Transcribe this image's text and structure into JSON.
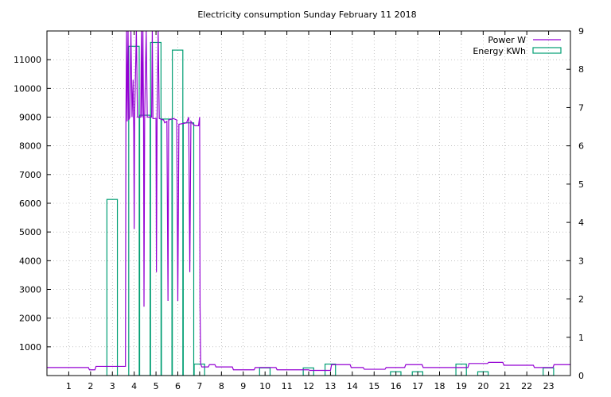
{
  "chart_data": {
    "type": "bar+line",
    "title": "Electricity consumption Sunday February 11 2018",
    "xlabel": "",
    "ylabel_left": "",
    "ylabel_right": "",
    "xlim": [
      0,
      24
    ],
    "ylim_left": [
      0,
      12000
    ],
    "ylim_right": [
      0,
      9
    ],
    "x_ticks": [
      "1",
      "2",
      "3",
      "4",
      "5",
      "6",
      "7",
      "8",
      "9",
      "10",
      "11",
      "12",
      "13",
      "14",
      "15",
      "16",
      "17",
      "18",
      "19",
      "20",
      "21",
      "22",
      "23"
    ],
    "y_ticks_left": [
      "1000",
      "2000",
      "3000",
      "4000",
      "5000",
      "6000",
      "7000",
      "8000",
      "9000",
      "10000",
      "11000"
    ],
    "y_ticks_right": [
      "0",
      "1",
      "2",
      "3",
      "4",
      "5",
      "6",
      "7",
      "8",
      "9"
    ],
    "grid": true,
    "legend_position": "top-right",
    "colors": {
      "power": "#9400d3",
      "energy": "#009e73"
    },
    "series": [
      {
        "name": "Power W",
        "axis": "left",
        "type": "line",
        "points": [
          [
            0,
            280
          ],
          [
            1.9,
            280
          ],
          [
            1.95,
            200
          ],
          [
            2.2,
            200
          ],
          [
            2.25,
            320
          ],
          [
            2.9,
            320
          ],
          [
            3.6,
            320
          ],
          [
            3.62,
            8800
          ],
          [
            3.65,
            12000
          ],
          [
            3.68,
            8850
          ],
          [
            3.72,
            12000
          ],
          [
            3.75,
            8900
          ],
          [
            3.8,
            9000
          ],
          [
            3.85,
            12000
          ],
          [
            3.9,
            9000
          ],
          [
            3.95,
            10300
          ],
          [
            3.98,
            8500
          ],
          [
            4.0,
            5100
          ],
          [
            4.02,
            9000
          ],
          [
            4.1,
            12000
          ],
          [
            4.15,
            9000
          ],
          [
            4.3,
            9000
          ],
          [
            4.33,
            12000
          ],
          [
            4.36,
            9000
          ],
          [
            4.4,
            12000
          ],
          [
            4.43,
            8900
          ],
          [
            4.45,
            2400
          ],
          [
            4.48,
            9000
          ],
          [
            4.55,
            12000
          ],
          [
            4.6,
            9000
          ],
          [
            4.8,
            9000
          ],
          [
            4.83,
            12000
          ],
          [
            4.86,
            8950
          ],
          [
            5.0,
            8950
          ],
          [
            5.02,
            3600
          ],
          [
            5.05,
            9000
          ],
          [
            5.1,
            12000
          ],
          [
            5.15,
            8950
          ],
          [
            5.35,
            8900
          ],
          [
            5.4,
            8800
          ],
          [
            5.5,
            8850
          ],
          [
            5.55,
            2600
          ],
          [
            5.58,
            8900
          ],
          [
            5.8,
            8950
          ],
          [
            5.95,
            8900
          ],
          [
            6.0,
            2600
          ],
          [
            6.05,
            8750
          ],
          [
            6.4,
            8800
          ],
          [
            6.5,
            9000
          ],
          [
            6.55,
            3600
          ],
          [
            6.6,
            8850
          ],
          [
            6.7,
            8750
          ],
          [
            6.8,
            8700
          ],
          [
            6.95,
            8700
          ],
          [
            7.0,
            9000
          ],
          [
            7.02,
            2400
          ],
          [
            7.05,
            400
          ],
          [
            7.1,
            300
          ],
          [
            7.4,
            300
          ],
          [
            7.45,
            380
          ],
          [
            7.7,
            380
          ],
          [
            7.75,
            300
          ],
          [
            8.5,
            300
          ],
          [
            8.55,
            200
          ],
          [
            9.5,
            200
          ],
          [
            9.55,
            280
          ],
          [
            10.5,
            280
          ],
          [
            10.55,
            200
          ],
          [
            12.0,
            200
          ],
          [
            12.05,
            180
          ],
          [
            13.0,
            180
          ],
          [
            13.05,
            380
          ],
          [
            13.9,
            380
          ],
          [
            13.95,
            280
          ],
          [
            14.5,
            280
          ],
          [
            14.55,
            220
          ],
          [
            15.5,
            220
          ],
          [
            15.55,
            280
          ],
          [
            16.4,
            280
          ],
          [
            16.45,
            380
          ],
          [
            17.2,
            380
          ],
          [
            17.25,
            280
          ],
          [
            19.3,
            280
          ],
          [
            19.35,
            420
          ],
          [
            20.2,
            420
          ],
          [
            20.25,
            460
          ],
          [
            20.9,
            460
          ],
          [
            20.95,
            360
          ],
          [
            22.3,
            360
          ],
          [
            22.35,
            280
          ],
          [
            23.2,
            280
          ],
          [
            23.25,
            380
          ],
          [
            24,
            380
          ]
        ]
      },
      {
        "name": "Energy KWh",
        "axis": "right",
        "type": "bar",
        "bars": [
          {
            "x": 2.75,
            "w": 0.48,
            "v": 4.6
          },
          {
            "x": 3.75,
            "w": 0.48,
            "v": 8.6
          },
          {
            "x": 4.25,
            "w": 0.48,
            "v": 6.8
          },
          {
            "x": 4.75,
            "w": 0.48,
            "v": 8.7
          },
          {
            "x": 5.25,
            "w": 0.48,
            "v": 6.7
          },
          {
            "x": 5.75,
            "w": 0.48,
            "v": 8.5
          },
          {
            "x": 6.25,
            "w": 0.48,
            "v": 6.6
          },
          {
            "x": 6.75,
            "w": 0.48,
            "v": 0.3
          },
          {
            "x": 9.75,
            "w": 0.48,
            "v": 0.2
          },
          {
            "x": 11.75,
            "w": 0.48,
            "v": 0.2
          },
          {
            "x": 12.75,
            "w": 0.48,
            "v": 0.3
          },
          {
            "x": 15.75,
            "w": 0.48,
            "v": 0.1
          },
          {
            "x": 16.75,
            "w": 0.48,
            "v": 0.1
          },
          {
            "x": 18.75,
            "w": 0.48,
            "v": 0.3
          },
          {
            "x": 19.75,
            "w": 0.48,
            "v": 0.1
          },
          {
            "x": 22.75,
            "w": 0.48,
            "v": 0.2
          }
        ]
      }
    ]
  }
}
